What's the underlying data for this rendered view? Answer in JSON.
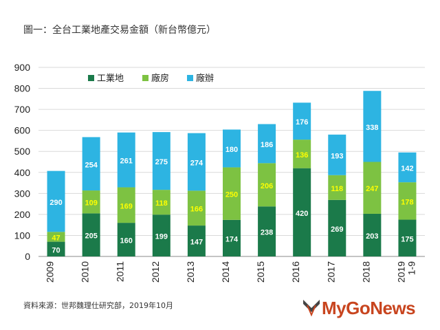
{
  "title": "圖一：全台工業地產交易金額（新台幣億元）",
  "source": "資料來源：世邦魏理仕研究部，2019年10月",
  "logo": "MyGoNews",
  "chart_data": {
    "type": "stacked-bar",
    "title": "圖一：全台工業地產交易金額（新台幣億元）",
    "categories": [
      "2009",
      "2010",
      "2011",
      "2012",
      "2013",
      "2014",
      "2015",
      "2016",
      "2017",
      "2018",
      "2019 1-9"
    ],
    "series": [
      {
        "name": "工業地",
        "color": "#1b7a4a",
        "label_color": "#ffffff",
        "values": [
          70,
          205,
          160,
          199,
          147,
          174,
          238,
          420,
          269,
          203,
          175
        ]
      },
      {
        "name": "廠房",
        "color": "#7dc242",
        "label_color": "#ffff00",
        "values": [
          47,
          109,
          169,
          118,
          166,
          250,
          206,
          136,
          118,
          247,
          178
        ]
      },
      {
        "name": "廠辦",
        "color": "#2db4e2",
        "label_color": "#ffffff",
        "values": [
          290,
          254,
          261,
          275,
          274,
          180,
          186,
          176,
          193,
          338,
          142
        ]
      }
    ],
    "ylim": [
      0,
      900
    ],
    "yticks": [
      0,
      100,
      200,
      300,
      400,
      500,
      600,
      700,
      800,
      900
    ],
    "grid": true,
    "legend": "top-left"
  }
}
